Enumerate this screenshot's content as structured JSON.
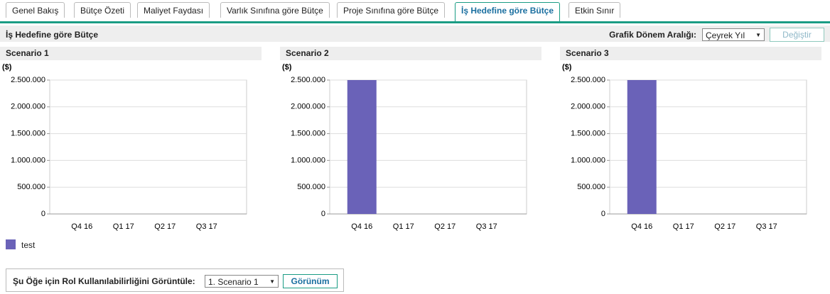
{
  "tabs": [
    "Genel Bakış",
    "Bütçe Özeti",
    "Maliyet Faydası",
    "Varlık Sınıfına göre Bütçe",
    "Proje Sınıfına göre Bütçe",
    "İş Hedefine göre Bütçe",
    "Etkin Sınır"
  ],
  "active_tab": 5,
  "section_title": "İş Hedefine göre Bütçe",
  "period_label": "Grafik Dönem Aralığı:",
  "period_select": "Çeyrek Yıl",
  "change_button": "Değiştir",
  "legend": {
    "name": "test",
    "color": "#6a62b8"
  },
  "chart_data": [
    {
      "type": "bar",
      "title": "Scenario 1",
      "y_unit": "($)",
      "categories": [
        "Q4 16",
        "Q1 17",
        "Q2 17",
        "Q3 17"
      ],
      "values": [
        0,
        0,
        0,
        0
      ],
      "ylim": [
        0,
        2500000
      ],
      "yticks": [
        0,
        {
          "value": 500000,
          "label": "500.000"
        },
        {
          "value": 1000000,
          "label": "1.000.000"
        },
        {
          "value": 1500000,
          "label": "1.500.000"
        },
        {
          "value": 2000000,
          "label": "2.000.000"
        },
        {
          "value": 2500000,
          "label": "2.500.000"
        }
      ],
      "grid": true
    },
    {
      "type": "bar",
      "title": "Scenario 2",
      "y_unit": "($)",
      "categories": [
        "Q4 16",
        "Q1 17",
        "Q2 17",
        "Q3 17"
      ],
      "values": [
        2500000,
        0,
        0,
        0
      ],
      "ylim": [
        0,
        2500000
      ],
      "yticks": [
        0,
        {
          "value": 500000,
          "label": "500.000"
        },
        {
          "value": 1000000,
          "label": "1.000.000"
        },
        {
          "value": 1500000,
          "label": "1.500.000"
        },
        {
          "value": 2000000,
          "label": "2.000.000"
        },
        {
          "value": 2500000,
          "label": "2.500.000"
        }
      ],
      "grid": true
    },
    {
      "type": "bar",
      "title": "Scenario 3",
      "y_unit": "($)",
      "categories": [
        "Q4 16",
        "Q1 17",
        "Q2 17",
        "Q3 17"
      ],
      "values": [
        2500000,
        0,
        0,
        0
      ],
      "ylim": [
        0,
        2500000
      ],
      "yticks": [
        0,
        {
          "value": 500000,
          "label": "500.000"
        },
        {
          "value": 1000000,
          "label": "1.000.000"
        },
        {
          "value": 1500000,
          "label": "1.500.000"
        },
        {
          "value": 2000000,
          "label": "2.000.000"
        },
        {
          "value": 2500000,
          "label": "2.500.000"
        }
      ],
      "grid": true
    }
  ],
  "role_label": "Şu Öğe için Rol Kullanılabilirliğini Görüntüle:",
  "role_select": "1. Scenario 1",
  "view_button": "Görünüm"
}
